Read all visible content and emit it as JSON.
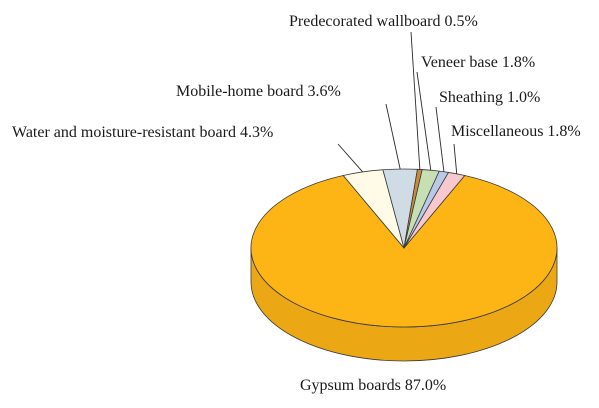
{
  "chart_data": {
    "type": "pie",
    "title": "",
    "slices": [
      {
        "label": "Gypsum boards",
        "value": 87.0,
        "color": "#FDB515"
      },
      {
        "label": "Water and moisture-resistant board",
        "value": 4.3,
        "color": "#FFFBE6"
      },
      {
        "label": "Mobile-home board",
        "value": 3.6,
        "color": "#CFDCE6"
      },
      {
        "label": "Predecorated wallboard",
        "value": 0.5,
        "color": "#C98A3A"
      },
      {
        "label": "Veneer base",
        "value": 1.8,
        "color": "#C6E0B4"
      },
      {
        "label": "Sheathing",
        "value": 1.0,
        "color": "#B9C9E8"
      },
      {
        "label": "Miscellaneous",
        "value": 1.8,
        "color": "#F7C9CF"
      }
    ],
    "labels": [
      "Gypsum boards 87.0%",
      "Water and moisture-resistant board 4.3%",
      "Mobile-home board 3.6%",
      "Predecorated wallboard 0.5%",
      "Veneer base 1.8%",
      "Sheathing 1.0%",
      "Miscellaneous 1.8%"
    ]
  }
}
